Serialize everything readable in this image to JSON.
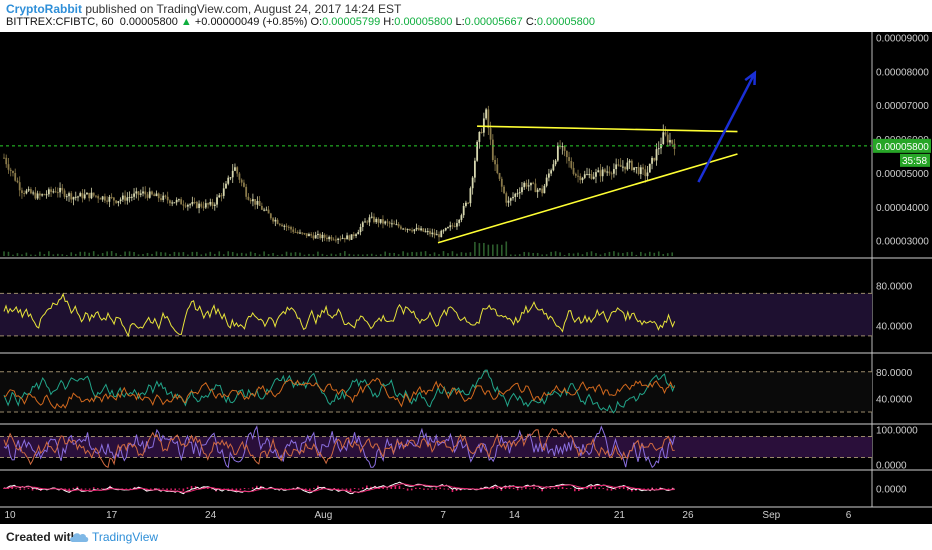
{
  "header": {
    "author": "CryptoRabbit",
    "published": " published on TradingView.com, August 24, 2017 14:24 EST",
    "symbol": "BITTREX:CFIBTC, 60",
    "last": "0.00005800",
    "up_glyph": "▲",
    "change": "+0.00000049 (+0.85%)",
    "o_label": "O:",
    "o": "0.00005799",
    "h_label": "H:",
    "h": "0.00005800",
    "l_label": "L:",
    "l": "0.00005667",
    "c_label": "C:",
    "c": "0.00005800"
  },
  "footer": {
    "created": "Created with",
    "brand": "TradingView",
    "icon": "tradingview-cloud-icon"
  },
  "colors": {
    "bg": "#000000",
    "yellow": "#ffff33",
    "green_line": "#2bd12b",
    "blue": "#1a2fd6",
    "candle_up": "#d8d8b0",
    "candle_down": "#8a7a4a"
  },
  "chart_data": [
    {
      "type": "candlestick",
      "pane": "price",
      "y_ticks": [
        "0.00009000",
        "0.00008000",
        "0.00007000",
        "0.00006000",
        "0.00005000",
        "0.00004000",
        "0.00003000"
      ],
      "y_values": [
        9e-05,
        8e-05,
        7e-05,
        6e-05,
        5e-05,
        4e-05,
        3e-05
      ],
      "ylim": [
        2.55e-05,
        9.1e-05
      ],
      "current_price_label": "0.00005800",
      "current_price": 5.8e-05,
      "countdown_label": "35:58",
      "x_ticks": [
        "10",
        "17",
        "24",
        "Aug",
        "7",
        "14",
        "21",
        "26",
        "Sep",
        "6"
      ],
      "price_path": [
        [
          0,
          5.45e-05
        ],
        [
          0.02,
          4.5e-05
        ],
        [
          0.04,
          4.3e-05
        ],
        [
          0.06,
          4.5e-05
        ],
        [
          0.08,
          4.3e-05
        ],
        [
          0.1,
          4.35e-05
        ],
        [
          0.13,
          4.2e-05
        ],
        [
          0.16,
          4.4e-05
        ],
        [
          0.19,
          4.2e-05
        ],
        [
          0.22,
          4.05e-05
        ],
        [
          0.24,
          4.05e-05
        ],
        [
          0.255,
          4.55e-05
        ],
        [
          0.265,
          5.2e-05
        ],
        [
          0.28,
          4.35e-05
        ],
        [
          0.31,
          3.65e-05
        ],
        [
          0.34,
          3.2e-05
        ],
        [
          0.37,
          3.1e-05
        ],
        [
          0.4,
          3.1e-05
        ],
        [
          0.42,
          3.65e-05
        ],
        [
          0.45,
          3.45e-05
        ],
        [
          0.48,
          3.3e-05
        ],
        [
          0.5,
          3.15e-05
        ],
        [
          0.52,
          3.5e-05
        ],
        [
          0.535,
          4.2e-05
        ],
        [
          0.545,
          5.8e-05
        ],
        [
          0.555,
          6.8e-05
        ],
        [
          0.565,
          5.2e-05
        ],
        [
          0.58,
          4.1e-05
        ],
        [
          0.6,
          4.7e-05
        ],
        [
          0.62,
          4.45e-05
        ],
        [
          0.64,
          5.8e-05
        ],
        [
          0.66,
          4.9e-05
        ],
        [
          0.68,
          4.95e-05
        ],
        [
          0.7,
          5.1e-05
        ],
        [
          0.72,
          5.25e-05
        ],
        [
          0.74,
          4.95e-05
        ],
        [
          0.76,
          6.1e-05
        ],
        [
          0.775,
          5.8e-05
        ]
      ],
      "annotations": {
        "resistance_line": [
          [
            0.545,
            6.38e-05
          ],
          [
            0.845,
            6.22e-05
          ]
        ],
        "support_line": [
          [
            0.5,
            2.94e-05
          ],
          [
            0.845,
            5.56e-05
          ]
        ],
        "price_line": 5.8e-05,
        "arrow": [
          [
            0.8,
            4.73e-05
          ],
          [
            0.865,
            7.95e-05
          ]
        ]
      }
    },
    {
      "type": "line",
      "pane": "rsi",
      "y_ticks": [
        "80.0000",
        "40.0000"
      ],
      "y_values": [
        80,
        40
      ],
      "ylim": [
        15,
        105
      ],
      "bands": [
        72,
        30
      ]
    },
    {
      "type": "line",
      "pane": "stoch",
      "y_ticks": [
        "80.0000",
        "40.0000"
      ],
      "y_values": [
        80,
        40
      ],
      "ylim": [
        5,
        105
      ],
      "bands": [
        80,
        20
      ]
    },
    {
      "type": "line",
      "pane": "stoch_rsi",
      "y_ticks": [
        "100.0000",
        "0.0000"
      ],
      "y_values": [
        100,
        0
      ],
      "ylim": [
        -10,
        110
      ],
      "bands": [
        80,
        20
      ]
    },
    {
      "type": "line",
      "pane": "macd",
      "y_ticks": [
        "0.0000"
      ],
      "y_values": [
        0
      ],
      "ylim": [
        -1,
        1
      ]
    }
  ]
}
